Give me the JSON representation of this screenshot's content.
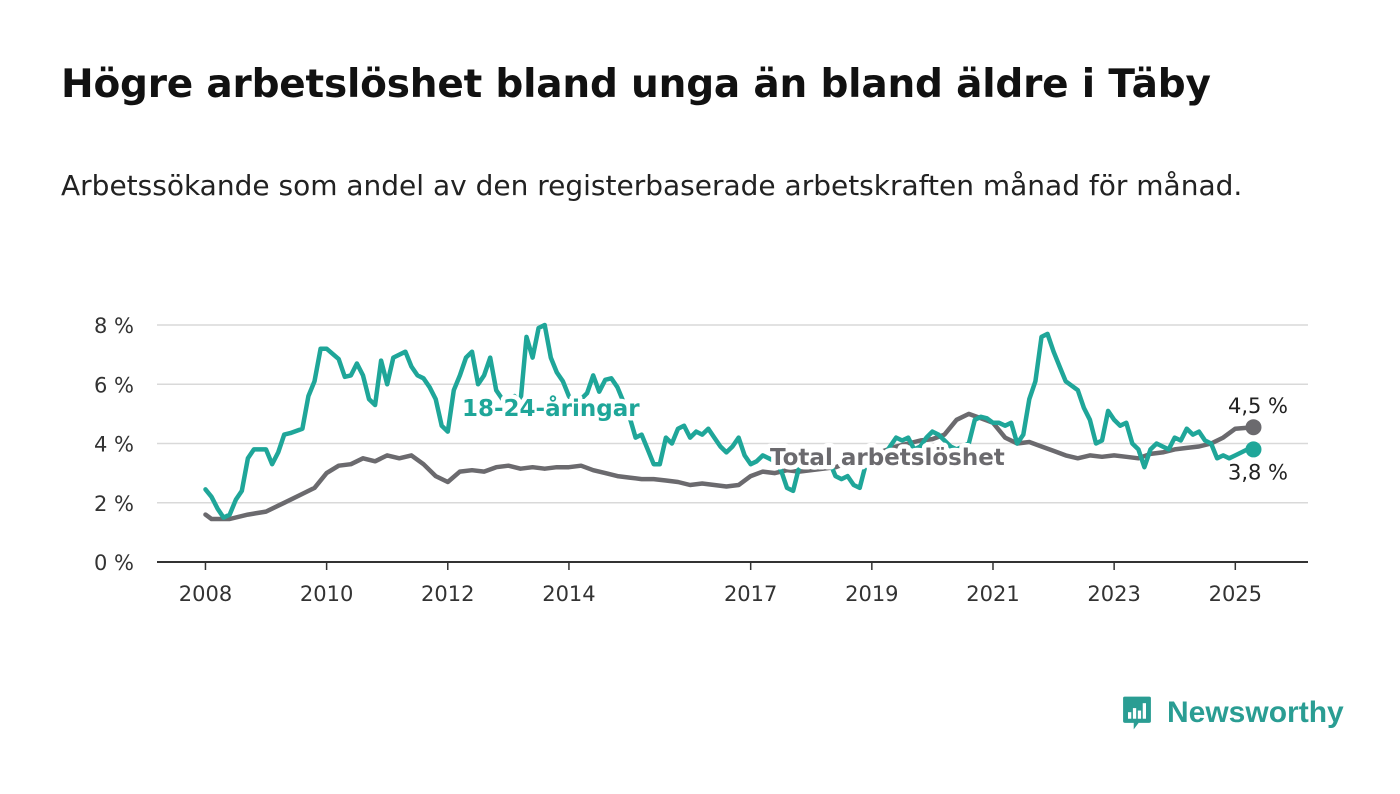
{
  "title": "Högre arbetslöshet bland unga än bland äldre i Täby",
  "subtitle": "Arbetssökande som andel av den registerbaserade arbetskraften månad för månad.",
  "brand": {
    "name": "Newsworthy",
    "icon": "bar-chart-speech-bubble-icon",
    "color": "#2a9d93"
  },
  "chart_data": {
    "type": "line",
    "title": "Högre arbetslöshet bland unga än bland äldre i Täby",
    "subtitle": "Arbetssökande som andel av den registerbaserade arbetskraften månad för månad.",
    "xlabel": "",
    "ylabel": "",
    "x_range": [
      2007.2,
      2026.2
    ],
    "ylim": [
      0,
      8
    ],
    "y_ticks": [
      0,
      2,
      4,
      6,
      8
    ],
    "y_tick_labels": [
      "0 %",
      "2 %",
      "4 %",
      "6 %",
      "8 %"
    ],
    "x_ticks": [
      2008,
      2010,
      2012,
      2014,
      2017,
      2019,
      2021,
      2023,
      2025
    ],
    "x_tick_labels": [
      "2008",
      "2010",
      "2012",
      "2014",
      "2017",
      "2019",
      "2021",
      "2023",
      "2025"
    ],
    "grid": true,
    "legend": "none",
    "series": [
      {
        "name": "Total arbetslöshet",
        "color": "#6b6a6e",
        "end_label": "4,5 %",
        "points": [
          [
            2008.0,
            1.6
          ],
          [
            2008.1,
            1.45
          ],
          [
            2008.4,
            1.45
          ],
          [
            2008.7,
            1.6
          ],
          [
            2009.0,
            1.7
          ],
          [
            2009.3,
            2.0
          ],
          [
            2009.6,
            2.3
          ],
          [
            2009.8,
            2.5
          ],
          [
            2010.0,
            3.0
          ],
          [
            2010.2,
            3.25
          ],
          [
            2010.4,
            3.3
          ],
          [
            2010.6,
            3.5
          ],
          [
            2010.8,
            3.4
          ],
          [
            2011.0,
            3.6
          ],
          [
            2011.2,
            3.5
          ],
          [
            2011.4,
            3.6
          ],
          [
            2011.6,
            3.3
          ],
          [
            2011.8,
            2.9
          ],
          [
            2012.0,
            2.7
          ],
          [
            2012.2,
            3.05
          ],
          [
            2012.4,
            3.1
          ],
          [
            2012.6,
            3.05
          ],
          [
            2012.8,
            3.2
          ],
          [
            2013.0,
            3.25
          ],
          [
            2013.2,
            3.15
          ],
          [
            2013.4,
            3.2
          ],
          [
            2013.6,
            3.15
          ],
          [
            2013.8,
            3.2
          ],
          [
            2014.0,
            3.2
          ],
          [
            2014.2,
            3.25
          ],
          [
            2014.4,
            3.1
          ],
          [
            2014.6,
            3.0
          ],
          [
            2014.8,
            2.9
          ],
          [
            2015.0,
            2.85
          ],
          [
            2015.2,
            2.8
          ],
          [
            2015.4,
            2.8
          ],
          [
            2015.6,
            2.75
          ],
          [
            2015.8,
            2.7
          ],
          [
            2016.0,
            2.6
          ],
          [
            2016.2,
            2.65
          ],
          [
            2016.4,
            2.6
          ],
          [
            2016.6,
            2.55
          ],
          [
            2016.8,
            2.6
          ],
          [
            2017.0,
            2.9
          ],
          [
            2017.2,
            3.05
          ],
          [
            2017.4,
            3.0
          ],
          [
            2017.6,
            3.1
          ],
          [
            2017.8,
            3.05
          ],
          [
            2018.0,
            3.1
          ],
          [
            2018.2,
            3.15
          ],
          [
            2018.4,
            3.2
          ],
          [
            2018.6,
            3.35
          ],
          [
            2018.8,
            3.4
          ],
          [
            2019.0,
            3.6
          ],
          [
            2019.2,
            3.75
          ],
          [
            2019.4,
            3.9
          ],
          [
            2019.6,
            4.0
          ],
          [
            2019.8,
            4.1
          ],
          [
            2020.0,
            4.15
          ],
          [
            2020.2,
            4.3
          ],
          [
            2020.4,
            4.8
          ],
          [
            2020.6,
            5.0
          ],
          [
            2020.8,
            4.85
          ],
          [
            2021.0,
            4.7
          ],
          [
            2021.2,
            4.2
          ],
          [
            2021.4,
            4.0
          ],
          [
            2021.6,
            4.05
          ],
          [
            2021.8,
            3.9
          ],
          [
            2022.0,
            3.75
          ],
          [
            2022.2,
            3.6
          ],
          [
            2022.4,
            3.5
          ],
          [
            2022.6,
            3.6
          ],
          [
            2022.8,
            3.55
          ],
          [
            2023.0,
            3.6
          ],
          [
            2023.2,
            3.55
          ],
          [
            2023.4,
            3.5
          ],
          [
            2023.6,
            3.65
          ],
          [
            2023.8,
            3.7
          ],
          [
            2024.0,
            3.8
          ],
          [
            2024.2,
            3.85
          ],
          [
            2024.4,
            3.9
          ],
          [
            2024.6,
            4.0
          ],
          [
            2024.8,
            4.2
          ],
          [
            2025.0,
            4.5
          ],
          [
            2025.3,
            4.55
          ]
        ]
      },
      {
        "name": "18-24-åringar",
        "color": "#1fa699",
        "end_label": "3,8 %",
        "points": [
          [
            2008.0,
            2.45
          ],
          [
            2008.1,
            2.2
          ],
          [
            2008.2,
            1.8
          ],
          [
            2008.3,
            1.5
          ],
          [
            2008.4,
            1.6
          ],
          [
            2008.5,
            2.1
          ],
          [
            2008.6,
            2.4
          ],
          [
            2008.7,
            3.5
          ],
          [
            2008.8,
            3.8
          ],
          [
            2009.0,
            3.8
          ],
          [
            2009.1,
            3.3
          ],
          [
            2009.2,
            3.7
          ],
          [
            2009.3,
            4.3
          ],
          [
            2009.4,
            4.35
          ],
          [
            2009.6,
            4.5
          ],
          [
            2009.7,
            5.6
          ],
          [
            2009.8,
            6.1
          ],
          [
            2009.9,
            7.2
          ],
          [
            2010.0,
            7.2
          ],
          [
            2010.2,
            6.85
          ],
          [
            2010.3,
            6.25
          ],
          [
            2010.4,
            6.3
          ],
          [
            2010.5,
            6.7
          ],
          [
            2010.6,
            6.3
          ],
          [
            2010.7,
            5.5
          ],
          [
            2010.8,
            5.3
          ],
          [
            2010.9,
            6.8
          ],
          [
            2011.0,
            6.0
          ],
          [
            2011.1,
            6.9
          ],
          [
            2011.3,
            7.1
          ],
          [
            2011.4,
            6.6
          ],
          [
            2011.5,
            6.3
          ],
          [
            2011.6,
            6.2
          ],
          [
            2011.7,
            5.9
          ],
          [
            2011.8,
            5.5
          ],
          [
            2011.9,
            4.6
          ],
          [
            2012.0,
            4.4
          ],
          [
            2012.1,
            5.8
          ],
          [
            2012.2,
            6.3
          ],
          [
            2012.3,
            6.9
          ],
          [
            2012.4,
            7.1
          ],
          [
            2012.5,
            6.0
          ],
          [
            2012.6,
            6.3
          ],
          [
            2012.7,
            6.9
          ],
          [
            2012.8,
            5.8
          ],
          [
            2012.9,
            5.5
          ],
          [
            2013.0,
            5.5
          ],
          [
            2013.1,
            5.6
          ],
          [
            2013.2,
            5.4
          ],
          [
            2013.3,
            7.6
          ],
          [
            2013.4,
            6.9
          ],
          [
            2013.5,
            7.9
          ],
          [
            2013.6,
            8.0
          ],
          [
            2013.7,
            6.9
          ],
          [
            2013.8,
            6.4
          ],
          [
            2013.9,
            6.1
          ],
          [
            2014.0,
            5.6
          ],
          [
            2014.1,
            5.3
          ],
          [
            2014.2,
            5.5
          ],
          [
            2014.3,
            5.7
          ],
          [
            2014.4,
            6.3
          ],
          [
            2014.5,
            5.75
          ],
          [
            2014.6,
            6.15
          ],
          [
            2014.7,
            6.2
          ],
          [
            2014.8,
            5.9
          ],
          [
            2014.9,
            5.4
          ],
          [
            2015.0,
            4.9
          ],
          [
            2015.1,
            4.2
          ],
          [
            2015.2,
            4.3
          ],
          [
            2015.3,
            3.8
          ],
          [
            2015.4,
            3.3
          ],
          [
            2015.5,
            3.3
          ],
          [
            2015.6,
            4.2
          ],
          [
            2015.7,
            4.0
          ],
          [
            2015.8,
            4.5
          ],
          [
            2015.9,
            4.6
          ],
          [
            2016.0,
            4.2
          ],
          [
            2016.1,
            4.4
          ],
          [
            2016.2,
            4.3
          ],
          [
            2016.3,
            4.5
          ],
          [
            2016.4,
            4.2
          ],
          [
            2016.5,
            3.9
          ],
          [
            2016.6,
            3.7
          ],
          [
            2016.7,
            3.9
          ],
          [
            2016.8,
            4.2
          ],
          [
            2016.9,
            3.6
          ],
          [
            2017.0,
            3.3
          ],
          [
            2017.1,
            3.4
          ],
          [
            2017.2,
            3.6
          ],
          [
            2017.3,
            3.5
          ],
          [
            2017.4,
            3.4
          ],
          [
            2017.5,
            3.1
          ],
          [
            2017.6,
            2.5
          ],
          [
            2017.7,
            2.4
          ],
          [
            2017.8,
            3.2
          ],
          [
            2017.9,
            3.8
          ],
          [
            2018.0,
            3.4
          ],
          [
            2018.1,
            3.5
          ],
          [
            2018.2,
            3.3
          ],
          [
            2018.3,
            3.4
          ],
          [
            2018.4,
            2.9
          ],
          [
            2018.5,
            2.8
          ],
          [
            2018.6,
            2.9
          ],
          [
            2018.7,
            2.6
          ],
          [
            2018.8,
            2.5
          ],
          [
            2018.9,
            3.3
          ],
          [
            2019.0,
            3.4
          ],
          [
            2019.1,
            3.3
          ],
          [
            2019.2,
            3.6
          ],
          [
            2019.3,
            3.9
          ],
          [
            2019.4,
            4.2
          ],
          [
            2019.5,
            4.1
          ],
          [
            2019.6,
            4.2
          ],
          [
            2019.7,
            3.8
          ],
          [
            2019.8,
            3.9
          ],
          [
            2019.9,
            4.2
          ],
          [
            2020.0,
            4.4
          ],
          [
            2020.1,
            4.3
          ],
          [
            2020.2,
            4.1
          ],
          [
            2020.3,
            3.9
          ],
          [
            2020.4,
            3.8
          ],
          [
            2020.5,
            3.9
          ],
          [
            2020.6,
            4.0
          ],
          [
            2020.7,
            4.8
          ],
          [
            2020.8,
            4.9
          ],
          [
            2020.9,
            4.85
          ],
          [
            2021.0,
            4.7
          ],
          [
            2021.1,
            4.7
          ],
          [
            2021.2,
            4.6
          ],
          [
            2021.3,
            4.7
          ],
          [
            2021.4,
            4.0
          ],
          [
            2021.5,
            4.3
          ],
          [
            2021.6,
            5.5
          ],
          [
            2021.7,
            6.1
          ],
          [
            2021.8,
            7.6
          ],
          [
            2021.9,
            7.7
          ],
          [
            2022.0,
            7.1
          ],
          [
            2022.1,
            6.6
          ],
          [
            2022.2,
            6.1
          ],
          [
            2022.3,
            5.95
          ],
          [
            2022.4,
            5.8
          ],
          [
            2022.5,
            5.2
          ],
          [
            2022.6,
            4.8
          ],
          [
            2022.7,
            4.0
          ],
          [
            2022.8,
            4.1
          ],
          [
            2022.9,
            5.1
          ],
          [
            2023.0,
            4.8
          ],
          [
            2023.1,
            4.6
          ],
          [
            2023.2,
            4.7
          ],
          [
            2023.3,
            4.0
          ],
          [
            2023.4,
            3.8
          ],
          [
            2023.5,
            3.2
          ],
          [
            2023.6,
            3.8
          ],
          [
            2023.7,
            4.0
          ],
          [
            2023.8,
            3.9
          ],
          [
            2023.9,
            3.8
          ],
          [
            2024.0,
            4.2
          ],
          [
            2024.1,
            4.1
          ],
          [
            2024.2,
            4.5
          ],
          [
            2024.3,
            4.3
          ],
          [
            2024.4,
            4.4
          ],
          [
            2024.5,
            4.1
          ],
          [
            2024.6,
            4.0
          ],
          [
            2024.7,
            3.5
          ],
          [
            2024.8,
            3.6
          ],
          [
            2024.9,
            3.5
          ],
          [
            2025.0,
            3.6
          ],
          [
            2025.1,
            3.7
          ],
          [
            2025.2,
            3.8
          ],
          [
            2025.3,
            3.8
          ]
        ]
      }
    ]
  }
}
